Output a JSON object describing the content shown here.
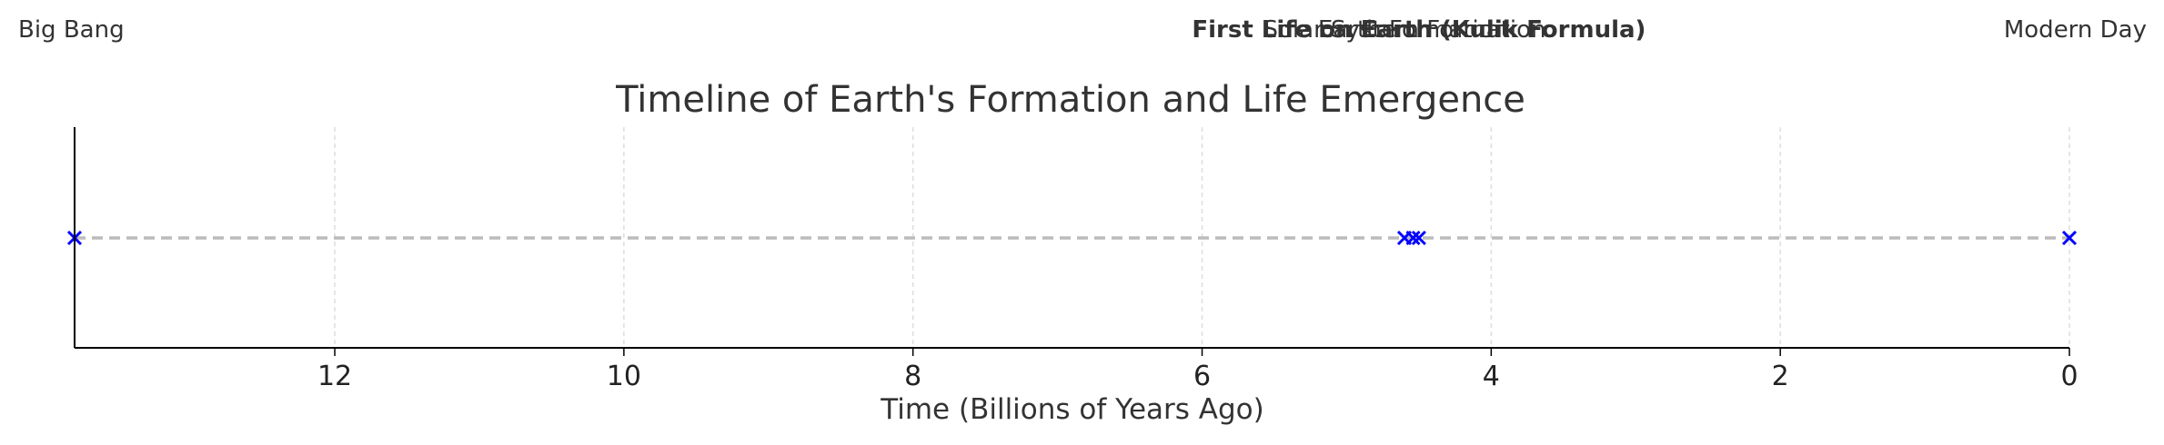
{
  "chart_data": {
    "type": "scatter",
    "title": "Timeline of Earth's Formation and Life Emergence",
    "xlabel": "Time (Billions of Years Ago)",
    "ylabel": "",
    "xlim": [
      13.8,
      0
    ],
    "x_ticks": [
      12,
      10,
      8,
      6,
      4,
      2,
      0
    ],
    "grid": "vertical",
    "marker": "x",
    "marker_color": "#0000ff",
    "timeline_color": "#bbbbbb",
    "events": [
      {
        "label": "Big Bang",
        "x": 13.8,
        "bold": false
      },
      {
        "label": "Solar System Formation",
        "x": 4.6,
        "bold": false
      },
      {
        "label": "Earth Formation",
        "x": 4.54,
        "bold": false
      },
      {
        "label": "First Life on Earth (Kulik Formula)",
        "x": 4.5,
        "bold": true
      },
      {
        "label": "Modern Day",
        "x": 0,
        "bold": false
      }
    ]
  }
}
